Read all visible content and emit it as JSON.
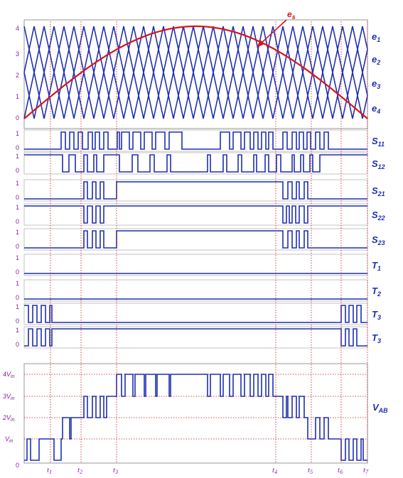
{
  "colors": {
    "carrier": "#1e2fb0",
    "reference": "#d8141a",
    "tick_text": "#8a20a8",
    "marker_line": "#c8141a",
    "frame": "#9a9a9a"
  },
  "carrier_panel": {
    "y_ticks": [
      "0",
      "1",
      "2",
      "3",
      "4"
    ],
    "carrier_labels": [
      {
        "main": "e",
        "sub": "1"
      },
      {
        "main": "e",
        "sub": "2"
      },
      {
        "main": "e",
        "sub": "3"
      },
      {
        "main": "e",
        "sub": "4"
      }
    ],
    "reference_label": {
      "main": "e",
      "sub": "s"
    }
  },
  "signal_rows": [
    {
      "label": "S",
      "sub": "11",
      "hi": "1",
      "lo": "0"
    },
    {
      "label": "S",
      "sub": "12",
      "hi": "1",
      "lo": "0"
    },
    {
      "label": "S",
      "sub": "21",
      "hi": "1",
      "lo": "0"
    },
    {
      "label": "S",
      "sub": "22",
      "hi": "1",
      "lo": "0"
    },
    {
      "label": "S",
      "sub": "23",
      "hi": "1",
      "lo": "0"
    },
    {
      "label": "T",
      "sub": "1",
      "hi": "1",
      "lo": "0"
    },
    {
      "label": "T",
      "sub": "2",
      "hi": "1",
      "lo": "0"
    },
    {
      "label": "T",
      "sub": "3",
      "hi": "1",
      "lo": "0"
    },
    {
      "label": "T",
      "sub": "3",
      "hi": "1",
      "lo": "0"
    }
  ],
  "output_panel": {
    "label": {
      "main": "V",
      "sub": "AB"
    },
    "y_ticks": [
      {
        "main": "0",
        "sub": ""
      },
      {
        "main": "V",
        "sub": "in"
      },
      {
        "main": "2V",
        "sub": "in"
      },
      {
        "main": "3V",
        "sub": "in"
      },
      {
        "main": "4V",
        "sub": "in"
      }
    ]
  },
  "time_markers": [
    {
      "main": "t",
      "sub": "1"
    },
    {
      "main": "t",
      "sub": "2"
    },
    {
      "main": "t",
      "sub": "3"
    },
    {
      "main": "t",
      "sub": "4"
    },
    {
      "main": "t",
      "sub": "5"
    },
    {
      "main": "t",
      "sub": "6"
    },
    {
      "main": "t",
      "sub": "7"
    }
  ]
}
